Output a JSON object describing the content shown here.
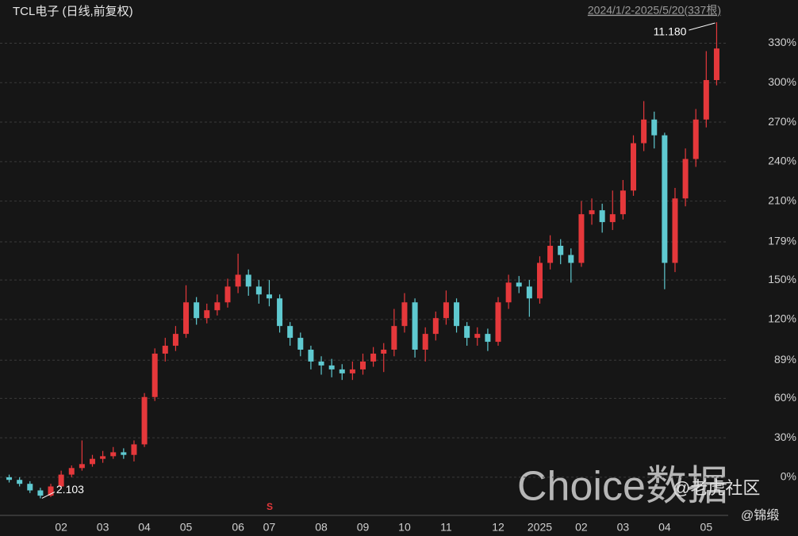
{
  "chart_data": {
    "type": "candlestick",
    "title": "TCL电子 (日线,前复权)",
    "range_label": "2024/1/2-2025/5/20(337根)",
    "high_label": "11.180",
    "low_label": "2.103",
    "signal_marker": "S",
    "watermarks": [
      "Choice数据",
      "@老虎社区",
      "@锦缎"
    ],
    "up_color": "#e5383b",
    "down_color": "#5fc9d0",
    "categories": [
      null,
      null,
      null,
      null,
      null,
      "02",
      null,
      null,
      null,
      "03",
      null,
      null,
      null,
      "04",
      null,
      null,
      null,
      "05",
      null,
      null,
      null,
      null,
      "06",
      null,
      null,
      "07",
      null,
      null,
      null,
      null,
      "08",
      null,
      null,
      null,
      "09",
      null,
      null,
      null,
      "10",
      null,
      null,
      null,
      "11",
      null,
      null,
      null,
      null,
      "12",
      null,
      null,
      null,
      "2025",
      null,
      null,
      null,
      "02",
      null,
      null,
      null,
      "03",
      null,
      null,
      null,
      "04",
      null,
      null,
      null,
      "05",
      null
    ],
    "open": [
      0,
      -2,
      -5,
      -10,
      -14,
      -7,
      2,
      7,
      10,
      14,
      16,
      19,
      17,
      25,
      61,
      94,
      100,
      109,
      133,
      121,
      127,
      133,
      145,
      154,
      145,
      139,
      136,
      115,
      106,
      97,
      88,
      85,
      82,
      79,
      82,
      88,
      94,
      97,
      115,
      133,
      97,
      109,
      121,
      133,
      115,
      106,
      109,
      103,
      133,
      148,
      145,
      136,
      163,
      176,
      169,
      163,
      200,
      203,
      194,
      200,
      218,
      254,
      272,
      260,
      163,
      212,
      242,
      272,
      302
    ],
    "high": [
      2,
      0,
      -3,
      -8,
      -5,
      5,
      9,
      28,
      17,
      20,
      23,
      22,
      28,
      64,
      98,
      106,
      115,
      146,
      137,
      132,
      139,
      151,
      170,
      158,
      150,
      150,
      139,
      118,
      110,
      100,
      92,
      90,
      86,
      88,
      94,
      99,
      102,
      128,
      140,
      136,
      114,
      126,
      142,
      136,
      118,
      114,
      113,
      137,
      154,
      153,
      150,
      168,
      184,
      181,
      174,
      210,
      212,
      208,
      218,
      226,
      260,
      286,
      278,
      262,
      220,
      250,
      280,
      324,
      346
    ],
    "low": [
      -4,
      -7,
      -12,
      -16,
      -15,
      -9,
      0,
      5,
      8,
      11,
      14,
      14,
      12,
      23,
      58,
      88,
      96,
      106,
      116,
      117,
      123,
      129,
      140,
      138,
      132,
      130,
      110,
      100,
      92,
      82,
      78,
      76,
      74,
      74,
      78,
      84,
      80,
      92,
      110,
      91,
      88,
      104,
      116,
      110,
      100,
      100,
      96,
      100,
      128,
      140,
      122,
      132,
      158,
      162,
      148,
      160,
      192,
      186,
      188,
      196,
      214,
      248,
      250,
      143,
      156,
      206,
      236,
      266,
      298
    ],
    "close": [
      -2,
      -5,
      -10,
      -14,
      -7,
      2,
      7,
      10,
      14,
      16,
      19,
      17,
      25,
      61,
      94,
      100,
      109,
      133,
      121,
      127,
      133,
      145,
      154,
      145,
      139,
      136,
      115,
      106,
      97,
      88,
      85,
      82,
      79,
      82,
      88,
      94,
      97,
      115,
      133,
      97,
      109,
      121,
      133,
      115,
      106,
      109,
      103,
      133,
      148,
      145,
      136,
      163,
      176,
      169,
      163,
      200,
      203,
      194,
      200,
      218,
      254,
      272,
      260,
      163,
      212,
      242,
      272,
      302,
      326
    ],
    "ylim": [
      -29,
      346
    ],
    "yticks": [
      {
        "value": 0,
        "label": "0%"
      },
      {
        "value": 30,
        "label": "30%"
      },
      {
        "value": 60,
        "label": "60%"
      },
      {
        "value": 89,
        "label": "89%"
      },
      {
        "value": 120,
        "label": "120%"
      },
      {
        "value": 150,
        "label": "150%"
      },
      {
        "value": 179,
        "label": "179%"
      },
      {
        "value": 210,
        "label": "210%"
      },
      {
        "value": 240,
        "label": "240%"
      },
      {
        "value": 270,
        "label": "270%"
      },
      {
        "value": 300,
        "label": "300%"
      },
      {
        "value": 330,
        "label": "330%"
      }
    ],
    "grid": true
  }
}
